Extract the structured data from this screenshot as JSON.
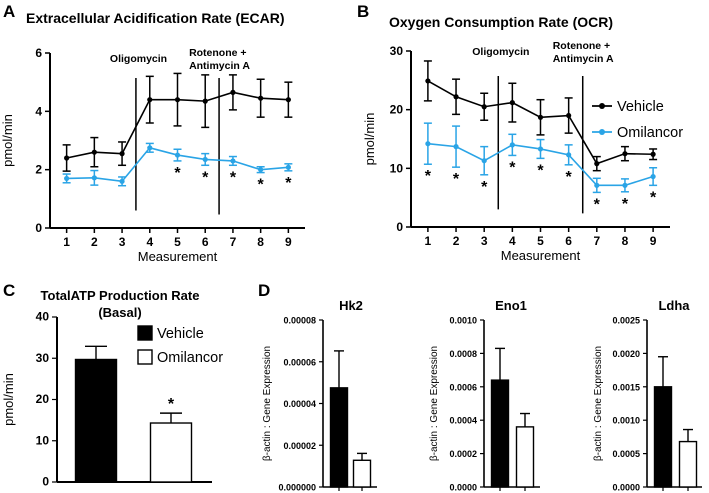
{
  "colors": {
    "vehicle": "#000000",
    "omilancor": "#2aa4e6"
  },
  "chart_data": [
    {
      "panel": "A",
      "type": "line",
      "title": "Extracellular Acidification Rate (ECAR)",
      "xlabel": "Measurement",
      "ylabel": "pmol/min",
      "x": [
        1,
        2,
        3,
        4,
        5,
        6,
        7,
        8,
        9
      ],
      "ylim": [
        0,
        6
      ],
      "yticks": [
        "0",
        "2",
        "4",
        "6"
      ],
      "series": [
        {
          "name": "Vehicle",
          "values": [
            2.4,
            2.6,
            2.55,
            4.4,
            4.4,
            4.35,
            4.65,
            4.45,
            4.4
          ],
          "errors": [
            0.45,
            0.5,
            0.4,
            0.8,
            0.9,
            0.9,
            0.6,
            0.65,
            0.6
          ]
        },
        {
          "name": "Omilancor",
          "values": [
            1.7,
            1.72,
            1.6,
            2.75,
            2.5,
            2.35,
            2.3,
            2.0,
            2.08
          ],
          "errors": [
            0.15,
            0.25,
            0.15,
            0.15,
            0.2,
            0.2,
            0.15,
            0.1,
            0.12
          ]
        }
      ],
      "significance": [
        5,
        6,
        7,
        8,
        9
      ],
      "annotations": [
        {
          "text": "Oligomycin",
          "after": 3.5
        },
        {
          "text": "Rotenone +",
          "text2": "Antimycin A",
          "after": 6.5
        }
      ]
    },
    {
      "panel": "B",
      "type": "line",
      "title": "Oxygen Consumption Rate (OCR)",
      "xlabel": "Measurement",
      "ylabel": "pmol/min",
      "x": [
        1,
        2,
        3,
        4,
        5,
        6,
        7,
        8,
        9
      ],
      "ylim": [
        0,
        30
      ],
      "yticks": [
        "0",
        "10",
        "20",
        "30"
      ],
      "series": [
        {
          "name": "Vehicle",
          "values": [
            24.9,
            22.2,
            20.5,
            21.2,
            18.7,
            19.0,
            10.8,
            12.5,
            12.4
          ],
          "errors": [
            3.4,
            3.0,
            2.3,
            3.3,
            3.0,
            3.0,
            1.2,
            1.2,
            0.9
          ]
        },
        {
          "name": "Omilancor",
          "values": [
            14.2,
            13.7,
            11.3,
            14.0,
            13.3,
            12.3,
            7.1,
            7.1,
            8.6
          ],
          "errors": [
            3.5,
            3.5,
            2.4,
            1.8,
            1.6,
            1.7,
            1.2,
            1.1,
            1.5
          ]
        }
      ],
      "significance": [
        1,
        2,
        3,
        4,
        5,
        6,
        7,
        8,
        9
      ],
      "annotations": [
        {
          "text": "Oligomycin",
          "after": 3.5
        },
        {
          "text": "Rotenone +",
          "text2": "Antimycin A",
          "after": 6.5
        }
      ]
    },
    {
      "panel": "C",
      "type": "bar",
      "title": "TotalATP Production Rate",
      "subtitle": "(Basal)",
      "ylabel": "pmol/min",
      "categories": [
        "Vehicle",
        "Omilancor"
      ],
      "values": [
        29.7,
        14.3
      ],
      "errors": [
        3.2,
        2.4
      ],
      "ylim": [
        0,
        40
      ],
      "yticks": [
        "0",
        "10",
        "20",
        "30",
        "40"
      ],
      "significance": [
        "Omilancor"
      ]
    },
    {
      "panel": "D",
      "type": "bar",
      "title": "Hk2",
      "ylabel": "β-actin : Gene Expression",
      "categories": [
        "Vehicle",
        "Omilancor"
      ],
      "values": [
        4.75e-05,
        1.28e-05
      ],
      "errors": [
        1.77e-05,
        3.3e-06
      ],
      "ylim": [
        0,
        8e-05
      ],
      "yticks": [
        "0.000000",
        "0.00002",
        "0.00004",
        "0.00006",
        "0.00008"
      ]
    },
    {
      "panel": "D",
      "type": "bar",
      "title": "Eno1",
      "ylabel": "β-actin : Gene Expression",
      "categories": [
        "Vehicle",
        "Omilancor"
      ],
      "values": [
        0.00064,
        0.00036
      ],
      "errors": [
        0.00019,
        8e-05
      ],
      "ylim": [
        0,
        0.001
      ],
      "yticks": [
        "0.0000",
        "0.0002",
        "0.0004",
        "0.0006",
        "0.0008",
        "0.0010"
      ]
    },
    {
      "panel": "D",
      "type": "bar",
      "title": "Ldha",
      "ylabel": "β-actin : Gene Expression",
      "categories": [
        "Vehicle",
        "Omilancor"
      ],
      "values": [
        0.0015,
        0.00068
      ],
      "errors": [
        0.00045,
        0.00018
      ],
      "ylim": [
        0,
        0.0025
      ],
      "yticks": [
        "0.0000",
        "0.0005",
        "0.0010",
        "0.0015",
        "0.0020",
        "0.0025"
      ]
    }
  ],
  "legend": {
    "vehicle": "Vehicle",
    "omilancor": "Omilancor"
  },
  "panels": [
    "A",
    "B",
    "C",
    "D"
  ],
  "significance_marker": "*"
}
